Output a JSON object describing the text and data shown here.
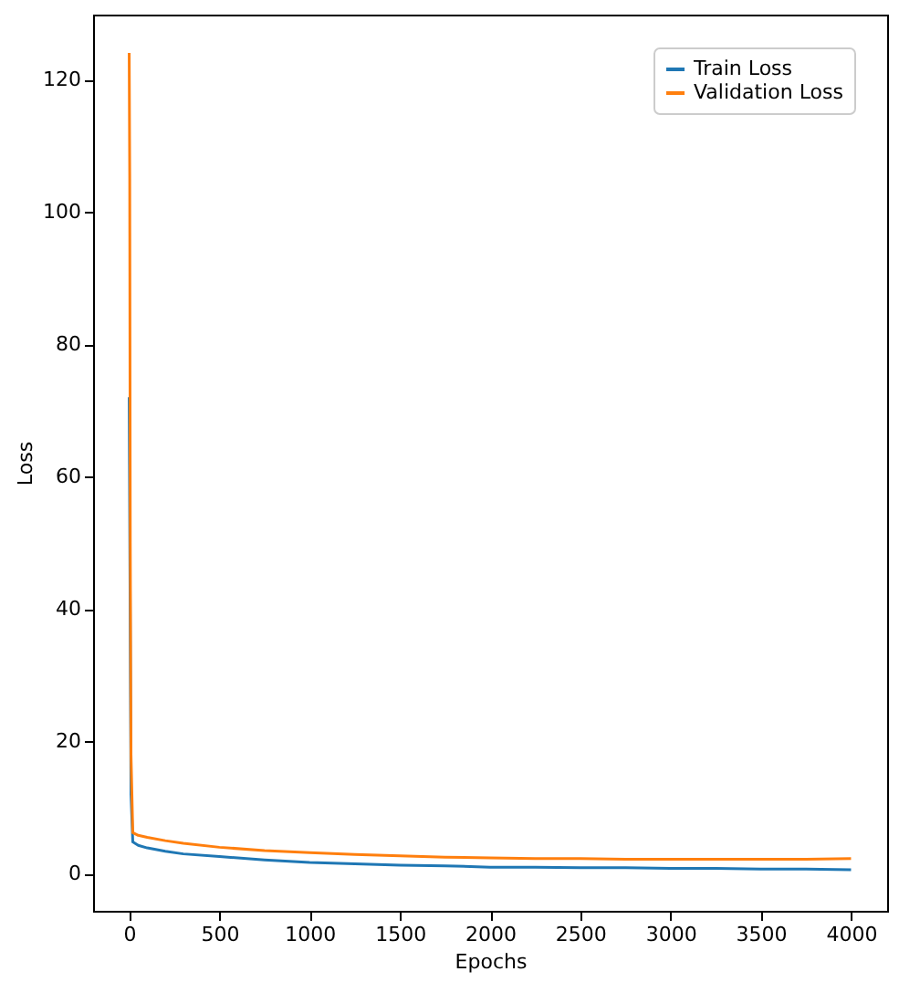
{
  "chart_data": {
    "type": "line",
    "xlabel": "Epochs",
    "ylabel": "Loss",
    "xlim": [
      -200,
      4200
    ],
    "ylim": [
      -5.6,
      129.8
    ],
    "xticks": [
      0,
      500,
      1000,
      1500,
      2000,
      2500,
      3000,
      3500,
      4000
    ],
    "yticks": [
      0,
      20,
      40,
      60,
      80,
      100,
      120
    ],
    "grid": false,
    "legend": "top right",
    "line_style": "solid",
    "marker": "none",
    "series": [
      {
        "name": "Train Loss",
        "color": "#1f77b4",
        "x": [
          0,
          10,
          20,
          50,
          100,
          200,
          300,
          500,
          750,
          1000,
          1250,
          1500,
          1750,
          2000,
          2250,
          2500,
          2750,
          3000,
          3250,
          3500,
          3750,
          4000
        ],
        "values": [
          72,
          12,
          4.8,
          4.3,
          3.9,
          3.4,
          3.0,
          2.6,
          2.1,
          1.7,
          1.5,
          1.3,
          1.2,
          1.0,
          1.0,
          0.9,
          0.9,
          0.8,
          0.8,
          0.7,
          0.7,
          0.6
        ]
      },
      {
        "name": "Validation Loss",
        "color": "#ff7f0e",
        "x": [
          0,
          3,
          6,
          10,
          20,
          50,
          100,
          200,
          300,
          500,
          750,
          1000,
          1250,
          1500,
          1750,
          2000,
          2250,
          2500,
          2750,
          3000,
          3250,
          3500,
          3750,
          4000
        ],
        "values": [
          124,
          105,
          50,
          18,
          6.2,
          5.8,
          5.5,
          5.0,
          4.6,
          4.0,
          3.5,
          3.2,
          2.9,
          2.7,
          2.5,
          2.4,
          2.3,
          2.3,
          2.2,
          2.2,
          2.2,
          2.2,
          2.2,
          2.3
        ]
      }
    ]
  }
}
